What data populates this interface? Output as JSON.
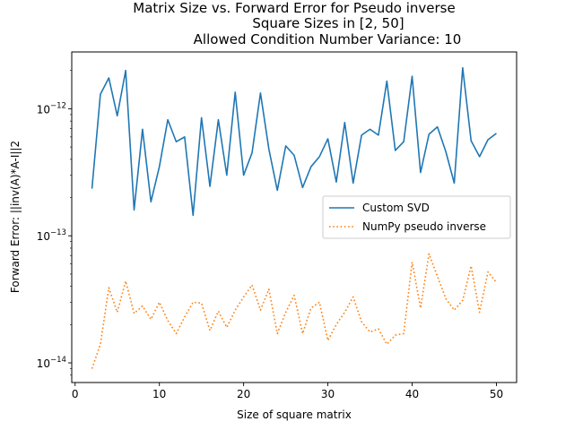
{
  "chart_data": {
    "type": "line",
    "title_lines": [
      "Matrix Size vs. Forward Error for Pseudo inverse",
      "Square Sizes in [2, 50]",
      "Allowed Condition Number Variance: 10"
    ],
    "xlabel": "Size of square matrix",
    "ylabel": "Forward Error: ||inv(A)*A-I||2",
    "xlim": [
      -0.4,
      52.4
    ],
    "ylim": [
      7e-15,
      2.8e-12
    ],
    "yscale": "log",
    "xticks": [
      0,
      10,
      20,
      30,
      40,
      50
    ],
    "yticks": [
      {
        "value": 1e-14,
        "label": "10",
        "exp": "−14"
      },
      {
        "value": 1e-13,
        "label": "10",
        "exp": "−13"
      },
      {
        "value": 1e-12,
        "label": "10",
        "exp": "−12"
      }
    ],
    "legend_position": "center-right",
    "x": [
      2,
      3,
      4,
      5,
      6,
      7,
      8,
      9,
      10,
      11,
      12,
      13,
      14,
      15,
      16,
      17,
      18,
      19,
      20,
      21,
      22,
      23,
      24,
      25,
      26,
      27,
      28,
      29,
      30,
      31,
      32,
      33,
      34,
      35,
      36,
      37,
      38,
      39,
      40,
      41,
      42,
      43,
      44,
      45,
      46,
      47,
      48,
      49,
      50
    ],
    "series": [
      {
        "name": "Custom SVD",
        "color": "#1f77b4",
        "style": "solid",
        "values": [
          2.35e-13,
          1.3e-12,
          1.75e-12,
          8.8e-13,
          2e-12,
          1.6e-13,
          6.9e-13,
          1.85e-13,
          3.5e-13,
          8.2e-13,
          5.5e-13,
          6e-13,
          1.45e-13,
          8.5e-13,
          2.45e-13,
          8.2e-13,
          3e-13,
          1.35e-12,
          3e-13,
          4.5e-13,
          1.33e-12,
          4.8e-13,
          2.28e-13,
          5.1e-13,
          4.3e-13,
          2.4e-13,
          3.5e-13,
          4.2e-13,
          5.8e-13,
          2.65e-13,
          7.8e-13,
          2.6e-13,
          6.2e-13,
          6.9e-13,
          6.2e-13,
          1.65e-12,
          4.7e-13,
          5.5e-13,
          1.8e-12,
          3.15e-13,
          6.3e-13,
          7.2e-13,
          4.6e-13,
          2.6e-13,
          2.1e-12,
          5.6e-13,
          4.2e-13,
          5.7e-13,
          6.4e-13
        ]
      },
      {
        "name": "NumPy pseudo inverse",
        "color": "#ff7f0e",
        "style": "dotted",
        "values": [
          9e-15,
          1.4e-14,
          3.9e-14,
          2.5e-14,
          4.4e-14,
          2.45e-14,
          2.8e-14,
          2.2e-14,
          3e-14,
          2.15e-14,
          1.7e-14,
          2.3e-14,
          3e-14,
          2.95e-14,
          1.8e-14,
          2.55e-14,
          1.9e-14,
          2.6e-14,
          3.3e-14,
          4.1e-14,
          2.6e-14,
          3.8e-14,
          1.7e-14,
          2.5e-14,
          3.4e-14,
          1.7e-14,
          2.7e-14,
          3e-14,
          1.5e-14,
          2e-14,
          2.5e-14,
          3.3e-14,
          2.1e-14,
          1.75e-14,
          1.85e-14,
          1.4e-14,
          1.65e-14,
          1.7e-14,
          6.2e-14,
          2.7e-14,
          7.2e-14,
          4.8e-14,
          3.2e-14,
          2.6e-14,
          3.1e-14,
          5.8e-14,
          2.5e-14,
          5.2e-14,
          4.3e-14
        ]
      }
    ]
  }
}
